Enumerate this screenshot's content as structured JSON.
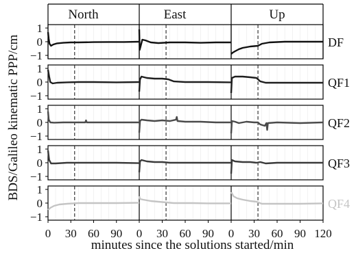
{
  "chart_data": {
    "type": "line",
    "title": "",
    "columns": [
      "North",
      "East",
      "Up"
    ],
    "ylabel": "BDS/Galileo kinematic PPP/cm",
    "xlabel": "minutes since the solutions started/min",
    "x_ticks": [
      0,
      30,
      60,
      90
    ],
    "x_ticks_last_panel": [
      0,
      30,
      60,
      90,
      120
    ],
    "xlim": [
      0,
      120
    ],
    "y_ticks": [
      -1,
      0,
      1
    ],
    "ylim": [
      -1,
      1
    ],
    "vline_x": 35,
    "grid": true,
    "rows": [
      {
        "name": "DF",
        "color": "#111111",
        "series": {
          "North": [
            [
              0,
              0.7
            ],
            [
              1,
              0.2
            ],
            [
              2,
              -0.15
            ],
            [
              4,
              -0.3
            ],
            [
              7,
              -0.2
            ],
            [
              12,
              -0.12
            ],
            [
              20,
              -0.08
            ],
            [
              30,
              -0.05
            ],
            [
              40,
              -0.05
            ],
            [
              60,
              -0.03
            ],
            [
              80,
              -0.02
            ],
            [
              100,
              -0.02
            ],
            [
              120,
              0.0
            ]
          ],
          "East": [
            [
              0,
              0.9
            ],
            [
              0.5,
              -0.6
            ],
            [
              2,
              -0.3
            ],
            [
              4,
              0.15
            ],
            [
              8,
              0.1
            ],
            [
              15,
              -0.05
            ],
            [
              25,
              -0.1
            ],
            [
              40,
              -0.05
            ],
            [
              60,
              -0.05
            ],
            [
              80,
              -0.08
            ],
            [
              100,
              -0.05
            ],
            [
              120,
              -0.05
            ]
          ],
          "Up": [
            [
              0,
              -0.9
            ],
            [
              2,
              -0.8
            ],
            [
              5,
              -0.7
            ],
            [
              10,
              -0.55
            ],
            [
              15,
              -0.45
            ],
            [
              25,
              -0.35
            ],
            [
              35,
              -0.3
            ],
            [
              40,
              -0.15
            ],
            [
              50,
              -0.05
            ],
            [
              70,
              0.0
            ],
            [
              90,
              0.0
            ],
            [
              120,
              0.0
            ]
          ]
        }
      },
      {
        "name": "QF1",
        "color": "#1e1e1e",
        "series": {
          "North": [
            [
              0,
              0.9
            ],
            [
              1.5,
              0.4
            ],
            [
              3,
              0.0
            ],
            [
              6,
              -0.1
            ],
            [
              12,
              -0.05
            ],
            [
              25,
              -0.02
            ],
            [
              40,
              0.0
            ],
            [
              60,
              0.0
            ],
            [
              90,
              -0.02
            ],
            [
              120,
              0.0
            ]
          ],
          "East": [
            [
              0,
              -0.7
            ],
            [
              1,
              0.2
            ],
            [
              3,
              0.4
            ],
            [
              10,
              0.3
            ],
            [
              20,
              0.25
            ],
            [
              30,
              0.25
            ],
            [
              38,
              0.2
            ],
            [
              45,
              0.05
            ],
            [
              60,
              0.0
            ],
            [
              90,
              0.0
            ],
            [
              120,
              -0.02
            ]
          ],
          "Up": [
            [
              0,
              -0.8
            ],
            [
              1,
              0.3
            ],
            [
              5,
              0.4
            ],
            [
              15,
              0.4
            ],
            [
              25,
              0.35
            ],
            [
              33,
              0.3
            ],
            [
              38,
              0.05
            ],
            [
              45,
              -0.05
            ],
            [
              60,
              -0.05
            ],
            [
              90,
              -0.05
            ],
            [
              120,
              -0.05
            ]
          ]
        }
      },
      {
        "name": "QF2",
        "color": "#4a4a4a",
        "series": {
          "North": [
            [
              0,
              0.8
            ],
            [
              1,
              0.2
            ],
            [
              3,
              0.0
            ],
            [
              8,
              -0.02
            ],
            [
              20,
              0.0
            ],
            [
              40,
              0.0
            ],
            [
              49,
              0.0
            ],
            [
              50,
              0.15
            ],
            [
              51,
              0.0
            ],
            [
              70,
              0.0
            ],
            [
              90,
              0.0
            ],
            [
              120,
              0.0
            ]
          ],
          "East": [
            [
              0,
              -0.75
            ],
            [
              1,
              0.1
            ],
            [
              3,
              0.2
            ],
            [
              10,
              0.15
            ],
            [
              20,
              0.1
            ],
            [
              30,
              0.15
            ],
            [
              40,
              0.1
            ],
            [
              48,
              0.2
            ],
            [
              49,
              0.4
            ],
            [
              50,
              0.1
            ],
            [
              60,
              0.05
            ],
            [
              80,
              0.05
            ],
            [
              100,
              0.0
            ],
            [
              120,
              0.0
            ]
          ],
          "Up": [
            [
              0,
              -0.8
            ],
            [
              1,
              0.1
            ],
            [
              5,
              0.05
            ],
            [
              10,
              -0.05
            ],
            [
              20,
              0.05
            ],
            [
              30,
              0.0
            ],
            [
              35,
              0.0
            ],
            [
              38,
              -0.15
            ],
            [
              44,
              -0.25
            ],
            [
              46,
              -0.05
            ],
            [
              47,
              -0.55
            ],
            [
              48,
              -0.05
            ],
            [
              60,
              0.0
            ],
            [
              90,
              -0.05
            ],
            [
              120,
              0.0
            ]
          ]
        }
      },
      {
        "name": "QF3",
        "color": "#3a3a3a",
        "series": {
          "North": [
            [
              0,
              0.9
            ],
            [
              1.5,
              0.2
            ],
            [
              4,
              -0.05
            ],
            [
              10,
              -0.05
            ],
            [
              25,
              0.0
            ],
            [
              40,
              0.0
            ],
            [
              60,
              0.0
            ],
            [
              90,
              0.0
            ],
            [
              120,
              -0.03
            ]
          ],
          "East": [
            [
              0,
              -0.7
            ],
            [
              1,
              0.1
            ],
            [
              3,
              0.2
            ],
            [
              10,
              0.1
            ],
            [
              20,
              0.05
            ],
            [
              30,
              0.05
            ],
            [
              40,
              0.0
            ],
            [
              60,
              0.0
            ],
            [
              90,
              0.0
            ],
            [
              120,
              0.0
            ]
          ],
          "Up": [
            [
              0,
              -0.8
            ],
            [
              1,
              0.2
            ],
            [
              5,
              0.1
            ],
            [
              15,
              0.05
            ],
            [
              25,
              0.05
            ],
            [
              33,
              0.0
            ],
            [
              38,
              0.05
            ],
            [
              45,
              -0.05
            ],
            [
              60,
              0.0
            ],
            [
              90,
              0.0
            ],
            [
              120,
              0.0
            ]
          ]
        }
      },
      {
        "name": "QF4",
        "color": "#c4c4c4",
        "series": {
          "North": [
            [
              0,
              -0.5
            ],
            [
              3,
              -0.35
            ],
            [
              8,
              -0.2
            ],
            [
              15,
              -0.1
            ],
            [
              25,
              -0.05
            ],
            [
              40,
              0.0
            ],
            [
              60,
              0.0
            ],
            [
              90,
              0.0
            ],
            [
              120,
              0.02
            ]
          ],
          "East": [
            [
              0,
              0.5
            ],
            [
              1,
              0.3
            ],
            [
              5,
              0.25
            ],
            [
              15,
              0.15
            ],
            [
              25,
              0.1
            ],
            [
              35,
              0.05
            ],
            [
              45,
              0.0
            ],
            [
              70,
              0.0
            ],
            [
              90,
              -0.02
            ],
            [
              120,
              -0.02
            ]
          ],
          "Up": [
            [
              0,
              0.8
            ],
            [
              3,
              0.5
            ],
            [
              8,
              0.35
            ],
            [
              15,
              0.25
            ],
            [
              25,
              0.15
            ],
            [
              33,
              0.1
            ],
            [
              40,
              -0.05
            ],
            [
              60,
              -0.05
            ],
            [
              90,
              -0.05
            ],
            [
              120,
              -0.02
            ]
          ]
        }
      }
    ]
  }
}
